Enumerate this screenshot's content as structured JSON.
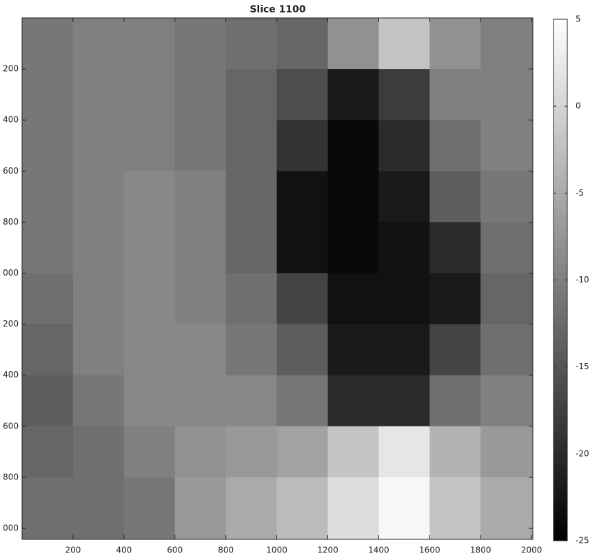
{
  "chart_data": {
    "type": "heatmap",
    "title": "Slice 1100",
    "colormap": "gray",
    "x": [
      100,
      300,
      500,
      700,
      900,
      1100,
      1300,
      1500,
      1700,
      1900
    ],
    "y": [
      100,
      300,
      500,
      700,
      900,
      1100,
      1300,
      1500,
      1700,
      1900
    ],
    "z": [
      [
        -11,
        -10,
        -10,
        -11,
        -12,
        -13,
        -8,
        -2,
        -8,
        -10
      ],
      [
        -11,
        -10,
        -10,
        -11,
        -13,
        -16,
        -22,
        -18,
        -10,
        -10
      ],
      [
        -11,
        -10,
        -10,
        -11,
        -13,
        -19,
        -24,
        -20,
        -12,
        -10
      ],
      [
        -11,
        -10,
        -9,
        -10,
        -13,
        -23,
        -24,
        -22,
        -14,
        -11
      ],
      [
        -11,
        -10,
        -9,
        -10,
        -13,
        -23,
        -24,
        -23,
        -20,
        -12
      ],
      [
        -12,
        -10,
        -9,
        -10,
        -12,
        -17,
        -23,
        -23,
        -22,
        -13
      ],
      [
        -13,
        -10,
        -9,
        -9,
        -11,
        -14,
        -22,
        -22,
        -17,
        -12
      ],
      [
        -14,
        -11,
        -9,
        -9,
        -9,
        -11,
        -20,
        -20,
        -12,
        -10
      ],
      [
        -13,
        -12,
        -10,
        -8,
        -7,
        -6,
        -2,
        2,
        -4,
        -7
      ],
      [
        -12,
        -12,
        -11,
        -7,
        -5,
        -3,
        1,
        4,
        -2,
        -5
      ]
    ],
    "xlim": [
      0,
      2005
    ],
    "xticks": [
      200,
      400,
      600,
      800,
      1000,
      1200,
      1400,
      1600,
      1800,
      2000
    ],
    "ylim": [
      0,
      2043
    ],
    "y_reversed": true,
    "yticks": [
      200,
      400,
      600,
      800,
      {
        "value": 1000,
        "label": "000"
      },
      {
        "value": 1200,
        "label": "200"
      },
      {
        "value": 1400,
        "label": "400"
      },
      {
        "value": 1600,
        "label": "600"
      },
      {
        "value": 1800,
        "label": "800"
      },
      {
        "value": 2000,
        "label": "000"
      }
    ],
    "clim": [
      -25,
      5
    ],
    "cticks": [
      5,
      0,
      -5,
      -10,
      -15,
      -20,
      -25
    ]
  }
}
